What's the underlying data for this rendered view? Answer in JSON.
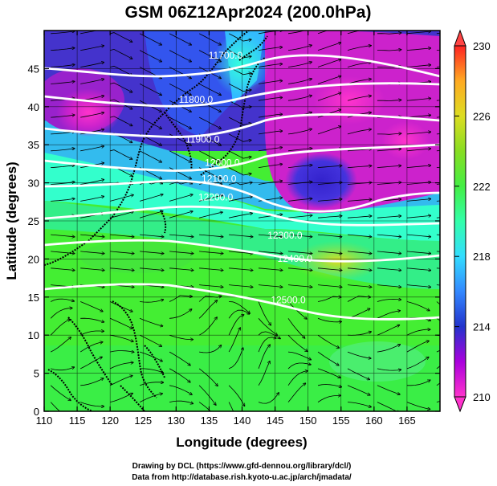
{
  "title": "GSM 06Z12Apr2024 (200.0hPa)",
  "x_axis": {
    "label": "Longitude (degrees)",
    "ticks": [
      "110",
      "115",
      "120",
      "125",
      "130",
      "135",
      "140",
      "145",
      "150",
      "155",
      "160",
      "165"
    ],
    "range": [
      110,
      170
    ]
  },
  "y_axis": {
    "label": "Latitude  (degrees)",
    "ticks": [
      "0",
      "5",
      "10",
      "15",
      "20",
      "25",
      "30",
      "35",
      "40",
      "45"
    ],
    "range": [
      0,
      50
    ]
  },
  "colorbar": {
    "ticks": [
      "210",
      "214",
      "218",
      "222",
      "226",
      "230"
    ],
    "range": [
      210,
      230
    ]
  },
  "contours": [
    {
      "label": "11700.0",
      "lon": 140,
      "lat": 46.3
    },
    {
      "label": "11800.0",
      "lon": 140,
      "lat": 41.0
    },
    {
      "label": "11900.0",
      "lon": 140,
      "lat": 36.5
    },
    {
      "label": "12000.0",
      "lon": 140,
      "lat": 32.5
    },
    {
      "label": "12100.0",
      "lon": 140,
      "lat": 29.8
    },
    {
      "label": "12200.0",
      "lon": 140,
      "lat": 27.3
    },
    {
      "label": "12300.0",
      "lon": 140,
      "lat": 24.5
    },
    {
      "label": "12400.0",
      "lon": 140,
      "lat": 21.0
    },
    {
      "label": "12500.0",
      "lon": 140,
      "lat": 16.8
    }
  ],
  "contour_labels_shown": [
    {
      "label": "11700.0",
      "lon": 137.5,
      "lat": 46.3
    },
    {
      "label": "11800.0",
      "lon": 133.0,
      "lat": 40.5
    },
    {
      "label": "11900.0",
      "lon": 134.0,
      "lat": 35.3
    },
    {
      "label": "12000.0",
      "lon": 137.0,
      "lat": 32.2
    },
    {
      "label": "12100.0",
      "lon": 136.5,
      "lat": 30.1
    },
    {
      "label": "12200.0",
      "lon": 136.0,
      "lat": 27.7
    },
    {
      "label": "12300.0",
      "lon": 146.5,
      "lat": 22.7
    },
    {
      "label": "12400.0",
      "lon": 148.0,
      "lat": 19.6
    },
    {
      "label": "12500.0",
      "lon": 147.0,
      "lat": 14.2
    }
  ],
  "credits": [
    "Drawing by DCL (https://www.gfd-dennou.org/library/dcl/)",
    "Data from http://database.rish.kyoto-u.ac.jp/arch/jmadata/"
  ],
  "colors": {
    "stops": [
      "#ff33cc",
      "#aa00dd",
      "#2233cc",
      "#33aaff",
      "#33ffcc",
      "#44ee44",
      "#66dd22",
      "#dddd22",
      "#ffaa22",
      "#ff2222"
    ]
  }
}
